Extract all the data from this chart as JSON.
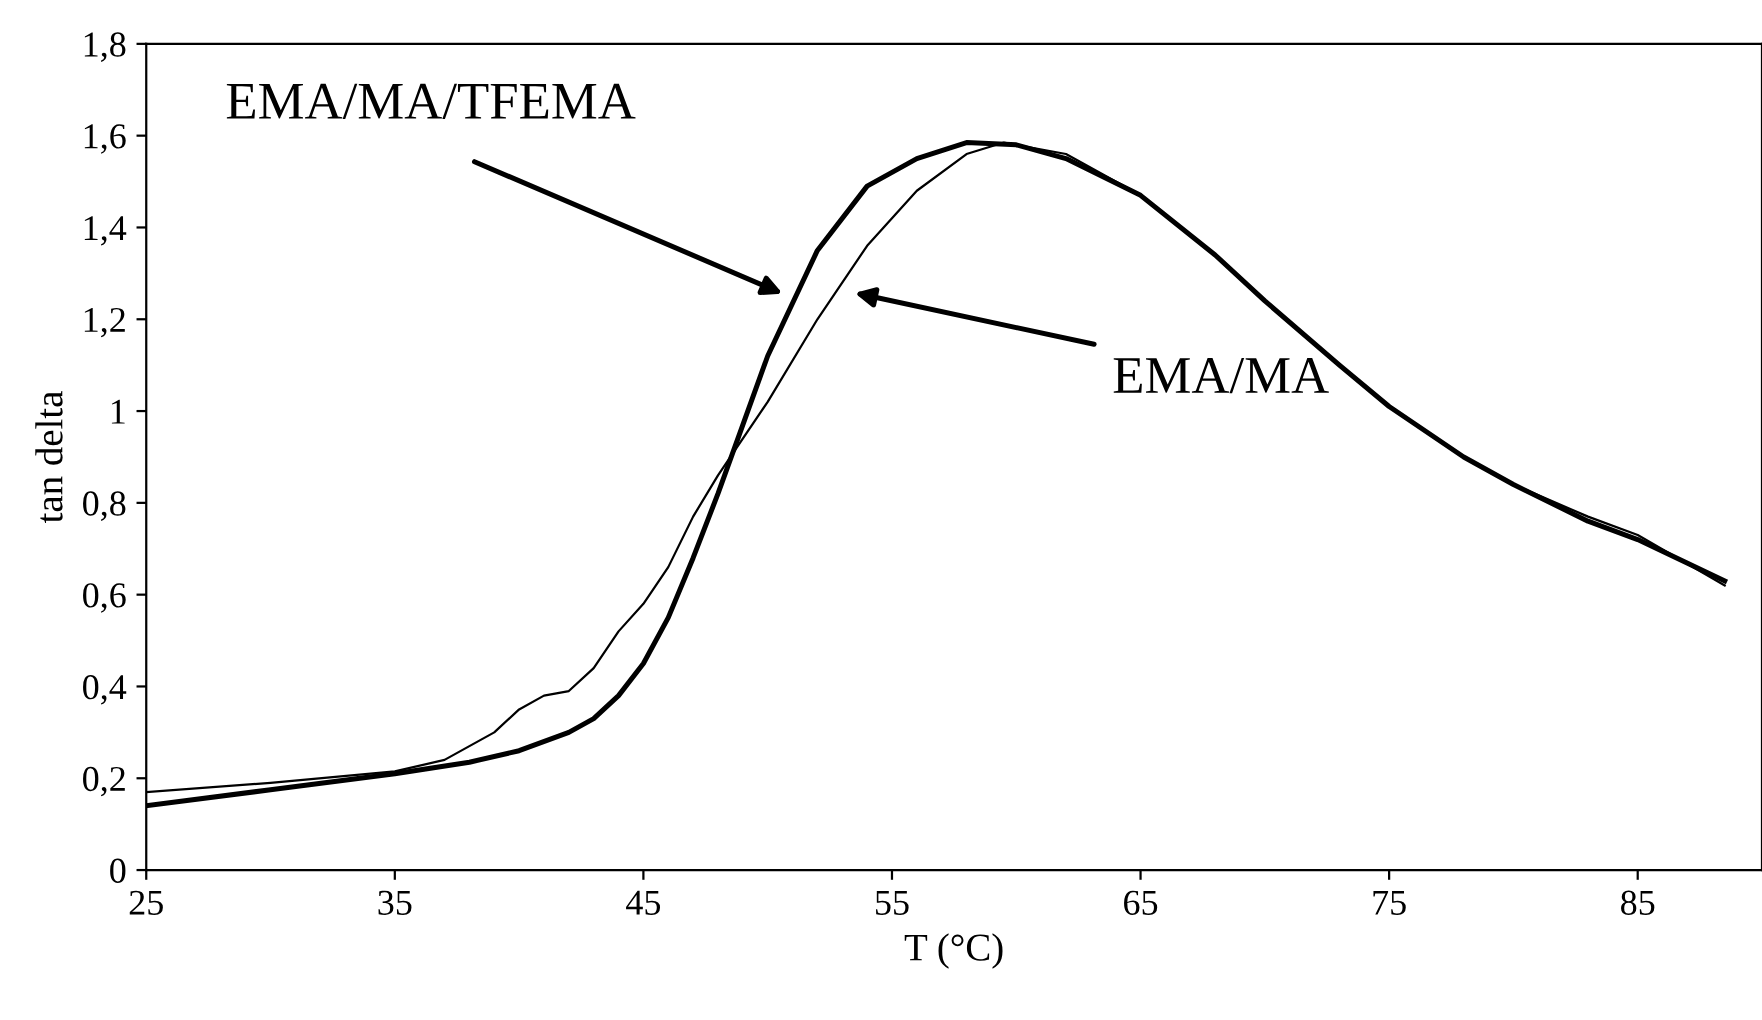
{
  "chart_data": {
    "type": "line",
    "xlabel": "T (°C)",
    "ylabel": "tan delta",
    "xlim": [
      25,
      90
    ],
    "xticks": [
      25,
      35,
      45,
      55,
      65,
      75,
      85
    ],
    "ylim": [
      0,
      1.8
    ],
    "yticks": [
      {
        "value": 0,
        "label": "0"
      },
      {
        "value": 0.2,
        "label": "0,2"
      },
      {
        "value": 0.4,
        "label": "0,4"
      },
      {
        "value": 0.6,
        "label": "0,6"
      },
      {
        "value": 0.8,
        "label": "0,8"
      },
      {
        "value": 1,
        "label": "1"
      },
      {
        "value": 1.2,
        "label": "1,2"
      },
      {
        "value": 1.4,
        "label": "1,4"
      },
      {
        "value": 1.6,
        "label": "1,6"
      },
      {
        "value": 1.8,
        "label": "1,8"
      }
    ],
    "grid": false,
    "legend": false,
    "marker": "none",
    "line_style": "solid",
    "series": [
      {
        "color": "#000000",
        "x": [
          25,
          30,
          35,
          38,
          40,
          42,
          43,
          44,
          45,
          46,
          47,
          48,
          49,
          50,
          52,
          54,
          56,
          58,
          60,
          62,
          65,
          68,
          70,
          73,
          75,
          78,
          80,
          83,
          85,
          88.5
        ],
        "values": [
          0.14,
          0.175,
          0.21,
          0.235,
          0.26,
          0.3,
          0.33,
          0.38,
          0.45,
          0.55,
          0.68,
          0.82,
          0.97,
          1.12,
          1.35,
          1.49,
          1.55,
          1.585,
          1.58,
          1.55,
          1.47,
          1.34,
          1.24,
          1.1,
          1.01,
          0.9,
          0.84,
          0.76,
          0.72,
          0.63
        ]
      },
      {
        "color": "#000000",
        "x": [
          25,
          30,
          35,
          37,
          39,
          40,
          41,
          42,
          43,
          44,
          45,
          46,
          47,
          48,
          50,
          52,
          54,
          56,
          58,
          59.5,
          62,
          65,
          68,
          70,
          73,
          75,
          78,
          80,
          83,
          85,
          88.5
        ],
        "values": [
          0.17,
          0.19,
          0.215,
          0.24,
          0.3,
          0.35,
          0.38,
          0.39,
          0.44,
          0.52,
          0.58,
          0.66,
          0.77,
          0.86,
          1.02,
          1.2,
          1.36,
          1.48,
          1.56,
          1.585,
          1.56,
          1.47,
          1.34,
          1.24,
          1.1,
          1.01,
          0.9,
          0.84,
          0.77,
          0.73,
          0.62
        ]
      }
    ],
    "annotations": [
      "EMA/MA/TFEMA",
      "EMA/MA"
    ]
  }
}
